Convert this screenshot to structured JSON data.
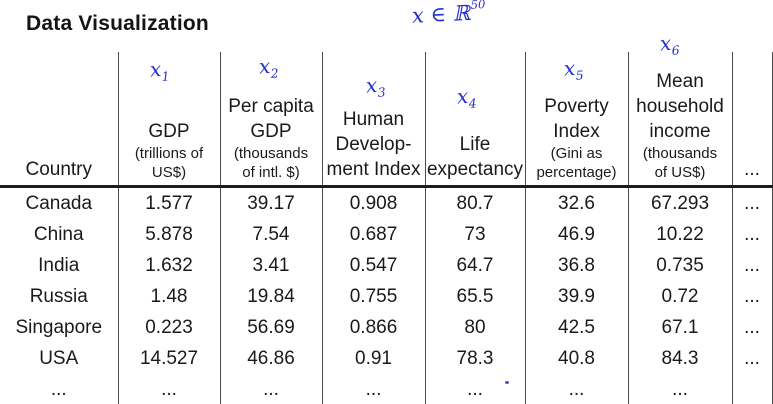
{
  "title": "Data Visualization",
  "annotations": {
    "ink_color": "#2631cb",
    "formula": {
      "base": "x ∈ ℝ",
      "exponent": "50"
    },
    "features": [
      {
        "base": "x",
        "sub": "1"
      },
      {
        "base": "x",
        "sub": "2"
      },
      {
        "base": "x",
        "sub": "3"
      },
      {
        "base": "x",
        "sub": "4"
      },
      {
        "base": "x",
        "sub": "5"
      },
      {
        "base": "x",
        "sub": "6"
      }
    ]
  },
  "table": {
    "columns": [
      {
        "id": "country",
        "main": [
          "Country"
        ],
        "sub": []
      },
      {
        "id": "gdp",
        "main": [
          "GDP"
        ],
        "sub": [
          "(trillions of",
          "US$)"
        ]
      },
      {
        "id": "per-capita-gdp",
        "main": [
          "Per capita",
          "GDP"
        ],
        "sub": [
          "(thousands",
          "of intl. $)"
        ]
      },
      {
        "id": "human-development-index",
        "main": [
          "Human",
          "Develop-",
          "ment Index"
        ],
        "sub": []
      },
      {
        "id": "life-expectancy",
        "main": [
          "Life",
          "expectancy"
        ],
        "sub": []
      },
      {
        "id": "poverty-index",
        "main": [
          "Poverty",
          "Index"
        ],
        "sub": [
          "(Gini as",
          "percentage)"
        ]
      },
      {
        "id": "mean-household-income",
        "main": [
          "Mean",
          "household",
          "income"
        ],
        "sub": [
          "(thousands",
          "of US$)"
        ]
      },
      {
        "id": "more",
        "main": [
          "..."
        ],
        "sub": []
      }
    ],
    "rows": [
      [
        "Canada",
        "1.577",
        "39.17",
        "0.908",
        "80.7",
        "32.6",
        "67.293",
        "..."
      ],
      [
        "China",
        "5.878",
        "7.54",
        "0.687",
        "73",
        "46.9",
        "10.22",
        "..."
      ],
      [
        "India",
        "1.632",
        "3.41",
        "0.547",
        "64.7",
        "36.8",
        "0.735",
        "..."
      ],
      [
        "Russia",
        "1.48",
        "19.84",
        "0.755",
        "65.5",
        "39.9",
        "0.72",
        "..."
      ],
      [
        "Singapore",
        "0.223",
        "56.69",
        "0.866",
        "80",
        "42.5",
        "67.1",
        "..."
      ],
      [
        "USA",
        "14.527",
        "46.86",
        "0.91",
        "78.3",
        "40.8",
        "84.3",
        "..."
      ],
      [
        "...",
        "...",
        "...",
        "...",
        "...",
        "...",
        "...",
        ""
      ]
    ]
  }
}
